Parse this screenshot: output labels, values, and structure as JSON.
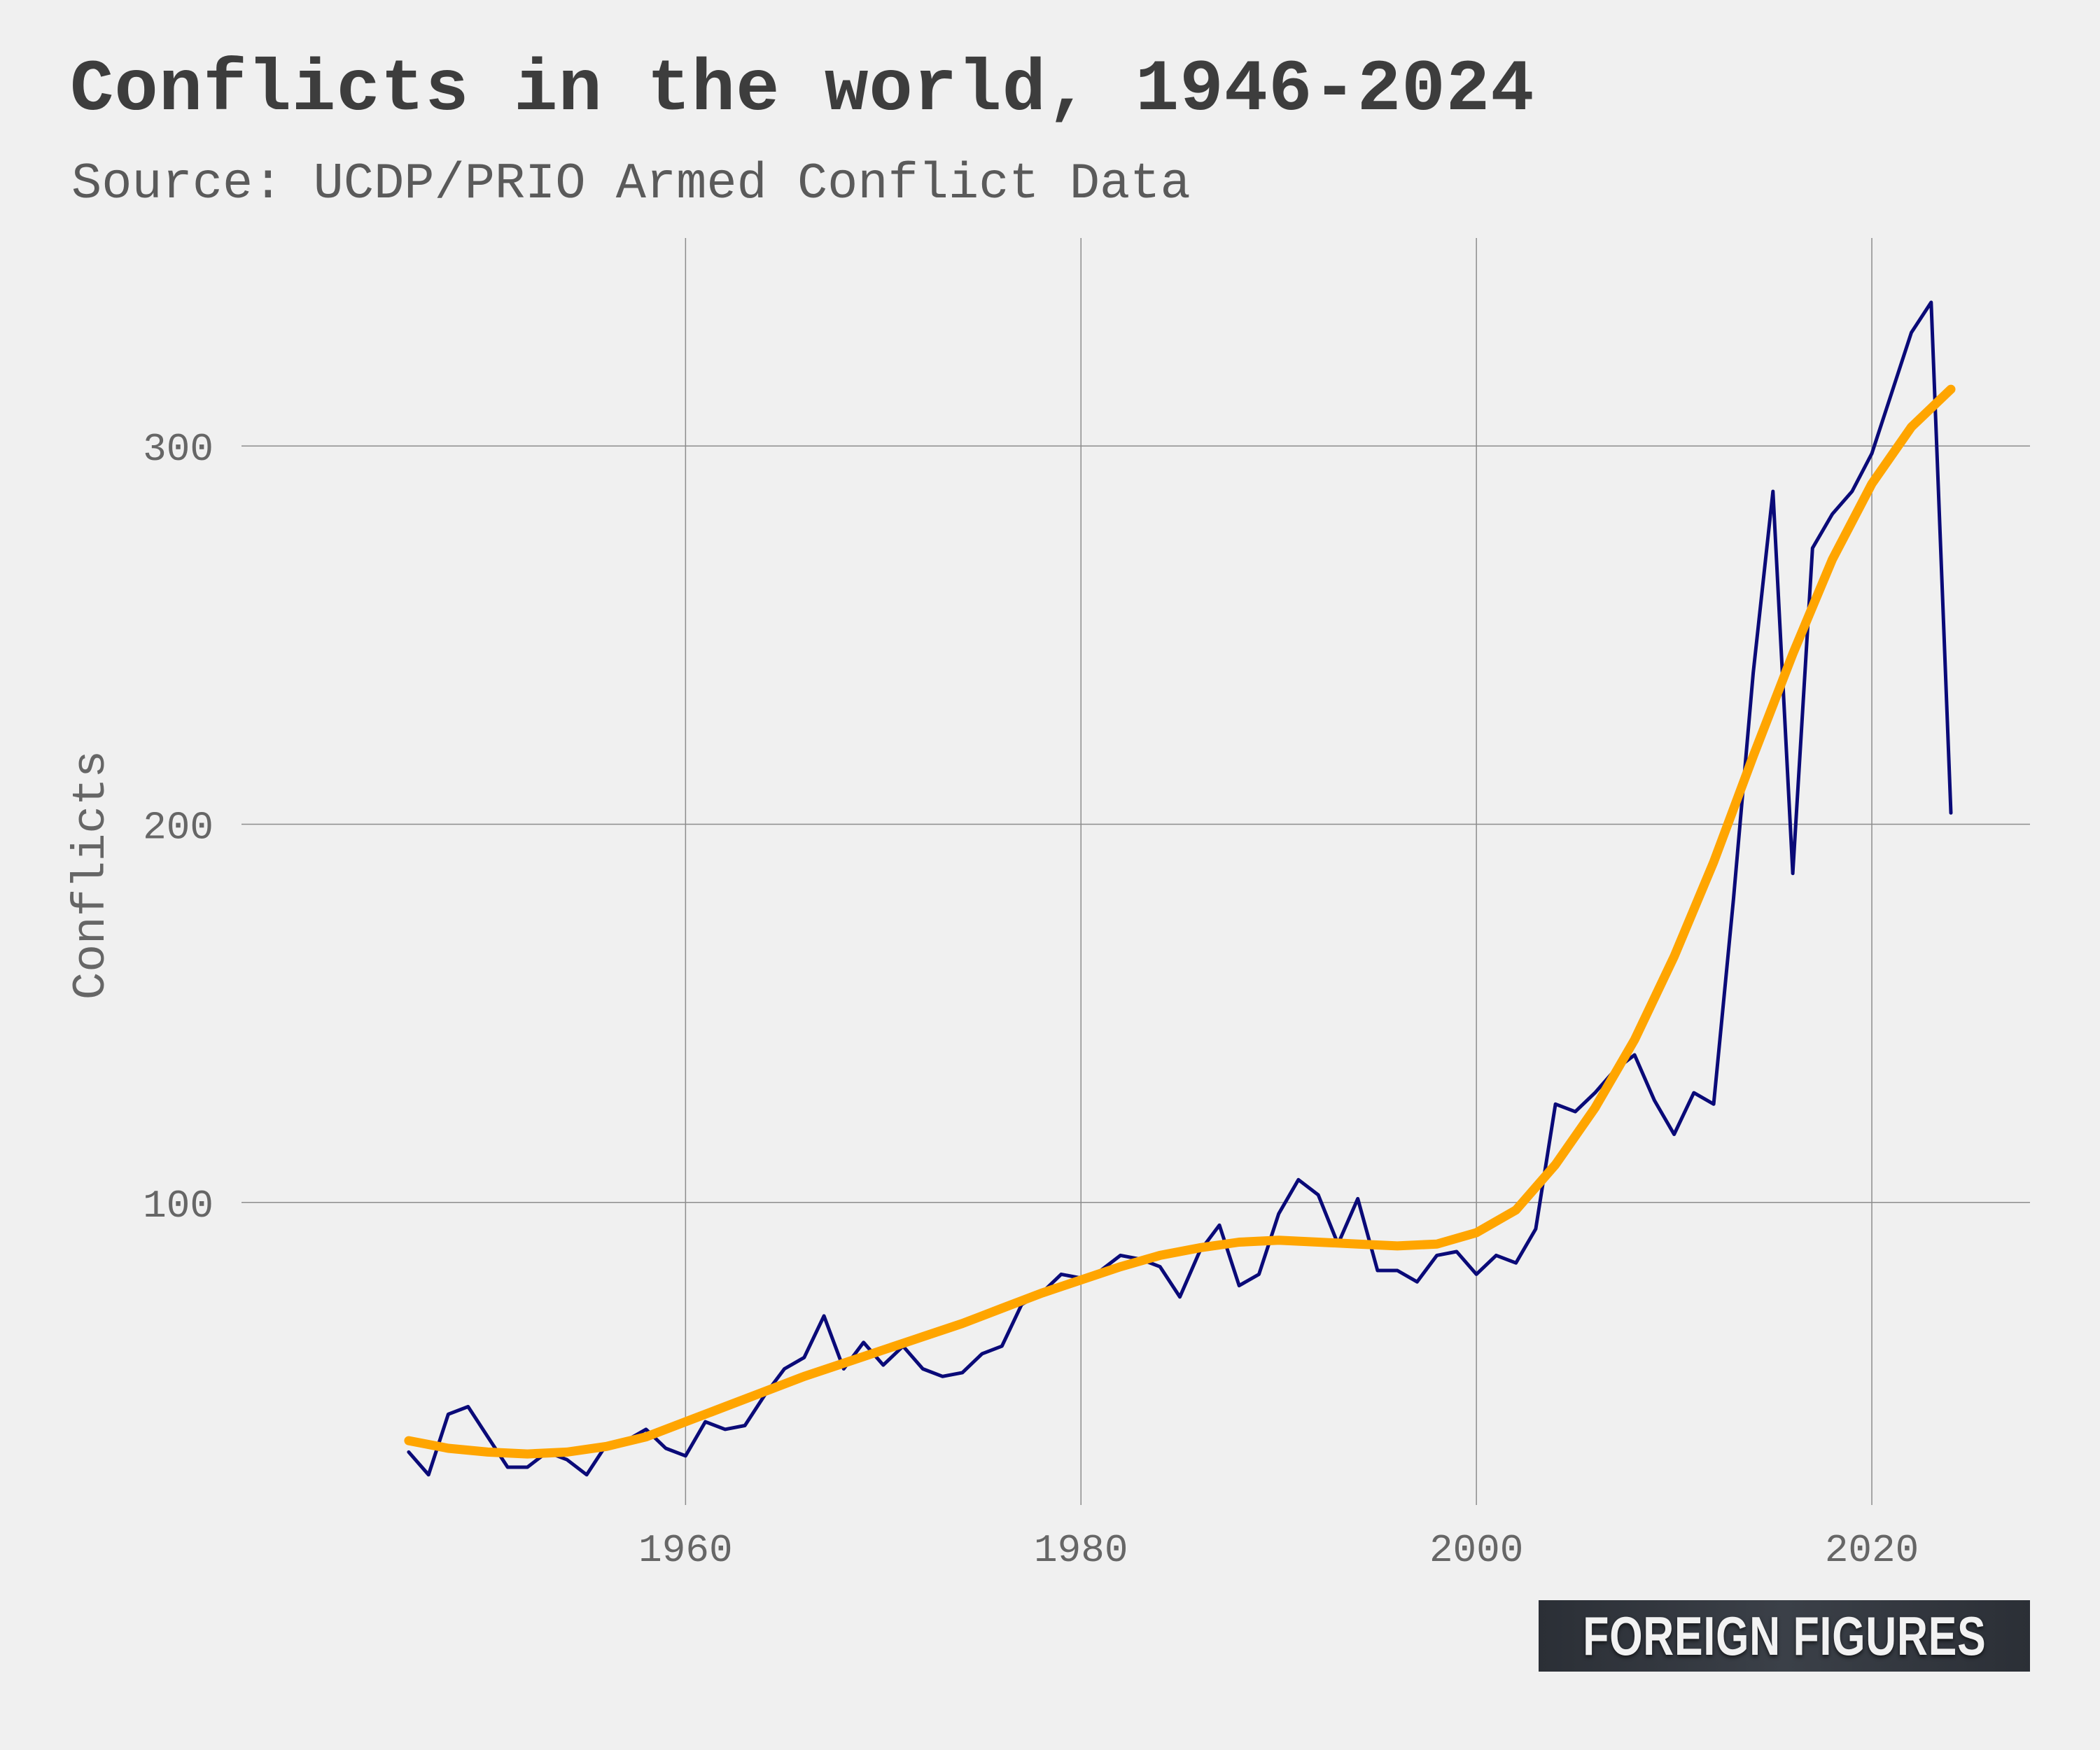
{
  "chart_data": {
    "type": "line",
    "title": "Conflicts in the world, 1946-2024",
    "subtitle": "Source: UCDP/PRIO Armed Conflict Data",
    "xlabel": "",
    "ylabel": "Conflicts",
    "xlim": [
      1934,
      2028
    ],
    "ylim": [
      20,
      355
    ],
    "x_ticks": [
      1960,
      1980,
      2000,
      2020
    ],
    "y_ticks": [
      100,
      200,
      300
    ],
    "grid": true,
    "legend": "none",
    "series": [
      {
        "color": "#0a0a78",
        "x": [
          1946,
          1947,
          1948,
          1949,
          1950,
          1951,
          1952,
          1953,
          1954,
          1955,
          1956,
          1957,
          1958,
          1959,
          1960,
          1961,
          1962,
          1963,
          1964,
          1965,
          1966,
          1967,
          1968,
          1969,
          1970,
          1971,
          1972,
          1973,
          1974,
          1975,
          1976,
          1977,
          1978,
          1979,
          1980,
          1981,
          1982,
          1983,
          1984,
          1985,
          1986,
          1987,
          1988,
          1989,
          1990,
          1991,
          1992,
          1993,
          1994,
          1995,
          1996,
          1997,
          1998,
          1999,
          2000,
          2001,
          2002,
          2003,
          2004,
          2005,
          2006,
          2007,
          2008,
          2009,
          2010,
          2011,
          2012,
          2013,
          2014,
          2015,
          2016,
          2017,
          2018,
          2019,
          2020,
          2021,
          2022,
          2023,
          2024
        ],
        "values": [
          34,
          28,
          44,
          46,
          38,
          30,
          30,
          34,
          32,
          28,
          36,
          37,
          40,
          35,
          33,
          42,
          40,
          41,
          49,
          56,
          59,
          70,
          56,
          63,
          57,
          62,
          56,
          54,
          55,
          60,
          62,
          73,
          76,
          81,
          80,
          82,
          86,
          85,
          83,
          75,
          87,
          94,
          78,
          81,
          97,
          106,
          102,
          89,
          101,
          82,
          82,
          79,
          86,
          87,
          81,
          86,
          84,
          93,
          126,
          124,
          129,
          135,
          139,
          127,
          118,
          129,
          126,
          180,
          240,
          288,
          187,
          273,
          282,
          288,
          298,
          314,
          330,
          338,
          203
        ]
      },
      {
        "color": "#ffa500",
        "x": [
          1946,
          1948,
          1950,
          1952,
          1954,
          1956,
          1958,
          1960,
          1962,
          1964,
          1966,
          1968,
          1970,
          1972,
          1974,
          1976,
          1978,
          1980,
          1982,
          1984,
          1986,
          1988,
          1990,
          1992,
          1994,
          1996,
          1998,
          2000,
          2002,
          2004,
          2006,
          2008,
          2010,
          2012,
          2014,
          2016,
          2018,
          2020,
          2022,
          2024
        ],
        "values": [
          37,
          35,
          34,
          33.5,
          34,
          35.5,
          38,
          42,
          46,
          50,
          54,
          57.5,
          61,
          64.5,
          68,
          72,
          76,
          79.5,
          83,
          86,
          88,
          89.5,
          90,
          89.5,
          89,
          88.5,
          89,
          92,
          98,
          110,
          125,
          143,
          165,
          190,
          218,
          245,
          270,
          290,
          305,
          315
        ]
      }
    ]
  },
  "branding": {
    "text": "FOREIGN FIGURES"
  }
}
